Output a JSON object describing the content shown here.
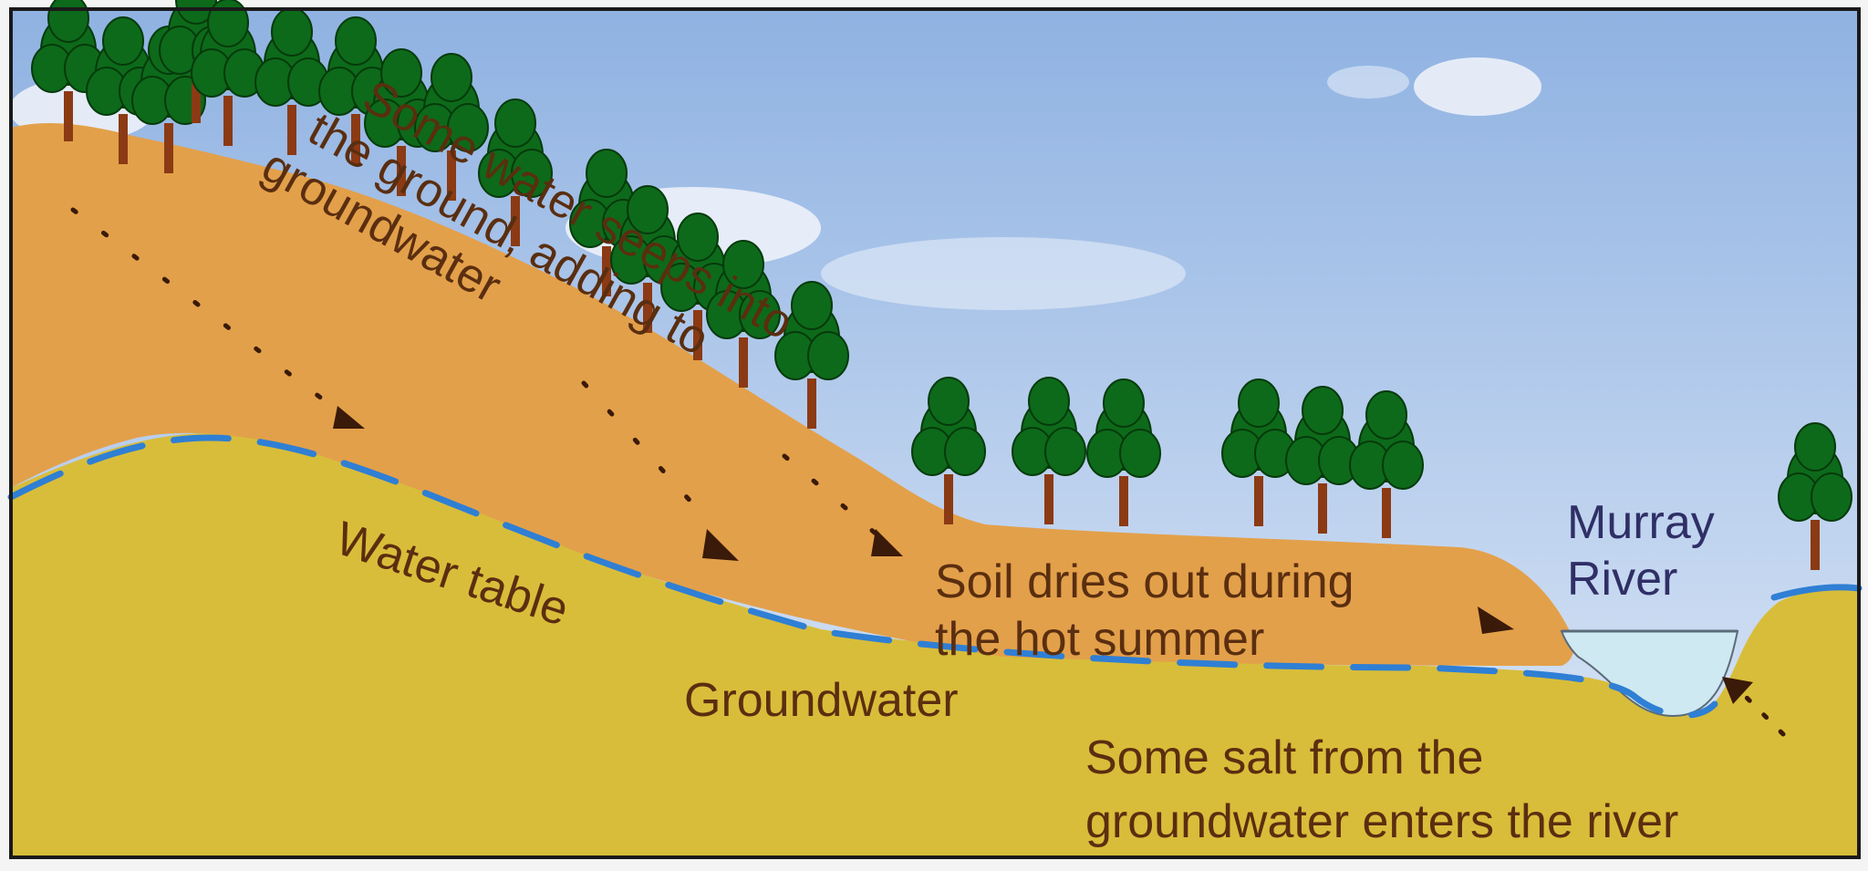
{
  "labels": {
    "seep_line1": "Some water seeps into",
    "seep_line2": "the ground, adding to",
    "seep_line3": "groundwater",
    "water_table": "Water table",
    "groundwater": "Groundwater",
    "soil_line1": "Soil dries out during",
    "soil_line2": "the hot summer",
    "river_line1": "Murray",
    "river_line2": "River",
    "salt_line1": "Some salt from the",
    "salt_line2": "groundwater enters the river"
  },
  "colors": {
    "sky_top": "#8fb2e2",
    "sky_bottom": "#dfe9f7",
    "soil": "#e3a04a",
    "groundwater": "#d8bd3a",
    "water_table_line": "#2f7fd4",
    "river": "#cfe9f2",
    "tree_foliage": "#0d6a1a",
    "tree_trunk": "#8b3a14",
    "label_text": "#5a2e10",
    "river_text": "#2f2f66",
    "frame": "#1a1a1a"
  }
}
